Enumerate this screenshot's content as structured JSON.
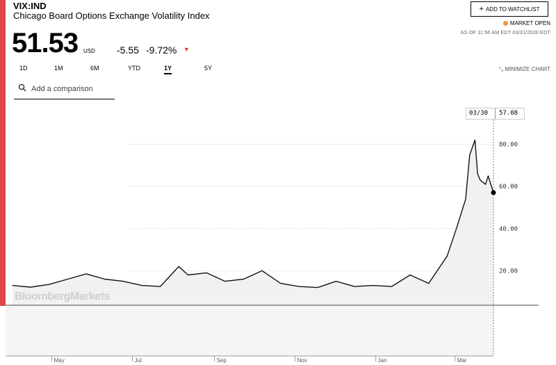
{
  "header": {
    "ticker": "VIX:IND",
    "name": "Chicago Board Options Exchange Volatility Index",
    "price": "51.53",
    "currency": "USD",
    "change": "-5.55",
    "change_pct": "-9.72%",
    "watchlist_label": "ADD TO WATCHLIST",
    "market_status": "MARKET OPEN",
    "as_of": "AS OF 11:56 AM EDT 03/31/2020 EDT"
  },
  "colors": {
    "accent": "#e0474c",
    "down": "#e03c31",
    "market_open": "#f2933b"
  },
  "tabs": [
    {
      "label": "1D",
      "active": false
    },
    {
      "label": "1M",
      "active": false
    },
    {
      "label": "6M",
      "active": false
    },
    {
      "label": "YTD",
      "active": false
    },
    {
      "label": "1Y",
      "active": true
    },
    {
      "label": "5Y",
      "active": false
    }
  ],
  "minimize_label": "MINIMIZE CHART",
  "search": {
    "placeholder": "Add a comparison"
  },
  "tooltip": {
    "date": "03/30",
    "value": "57.08"
  },
  "watermark": "BloombergMarkets",
  "chart_data": {
    "type": "area",
    "title": "",
    "y_ticks": [
      "80.00",
      "60.00",
      "40.00",
      "20.00"
    ],
    "ylim": [
      0,
      100
    ],
    "x_ticks": [
      "May",
      "Jul",
      "Sep",
      "Nov",
      "Jan",
      "Mar"
    ],
    "x": [
      "2019-04-01",
      "2019-04-15",
      "2019-04-29",
      "2019-05-13",
      "2019-05-27",
      "2019-06-10",
      "2019-06-24",
      "2019-07-08",
      "2019-07-22",
      "2019-08-05",
      "2019-08-12",
      "2019-08-26",
      "2019-09-09",
      "2019-09-23",
      "2019-10-07",
      "2019-10-21",
      "2019-11-04",
      "2019-11-18",
      "2019-12-02",
      "2019-12-16",
      "2019-12-30",
      "2020-01-13",
      "2020-01-27",
      "2020-02-10",
      "2020-02-24",
      "2020-03-02",
      "2020-03-09",
      "2020-03-12",
      "2020-03-16",
      "2020-03-18",
      "2020-03-20",
      "2020-03-24",
      "2020-03-26",
      "2020-03-30"
    ],
    "values": [
      13.0,
      12.2,
      13.5,
      16.0,
      18.5,
      16.0,
      15.0,
      13.0,
      12.5,
      22.0,
      18.0,
      19.0,
      15.0,
      16.0,
      20.0,
      14.0,
      12.5,
      12.0,
      15.0,
      12.5,
      13.0,
      12.5,
      18.0,
      14.0,
      27.0,
      40.0,
      54.0,
      75.0,
      82.0,
      66.0,
      63.0,
      61.0,
      65.0,
      57.08
    ]
  }
}
